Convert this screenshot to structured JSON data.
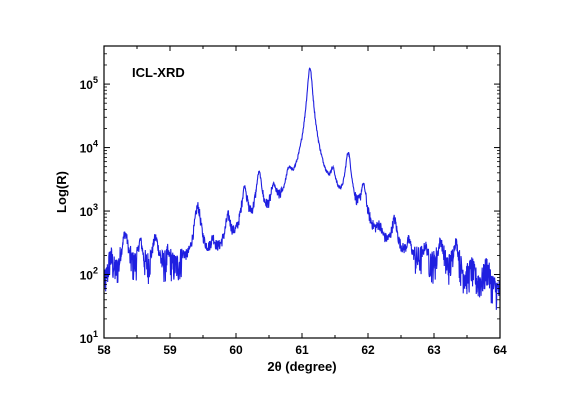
{
  "chart_data": {
    "type": "line",
    "annotation": "ICL-XRD",
    "xlabel": "2θ (degree)",
    "ylabel": "Log(R)",
    "xlim": [
      58,
      64
    ],
    "ylim": [
      10,
      1000000
    ],
    "yscale": "log",
    "x_ticks": [
      "58",
      "59",
      "60",
      "61",
      "62",
      "63",
      "64"
    ],
    "y_ticks": [
      {
        "base": "10",
        "exp": "1",
        "value": 10
      },
      {
        "base": "10",
        "exp": "2",
        "value": 100
      },
      {
        "base": "10",
        "exp": "3",
        "value": 1000
      },
      {
        "base": "10",
        "exp": "4",
        "value": 10000
      },
      {
        "base": "10",
        "exp": "5",
        "value": 100000
      }
    ],
    "grid": false,
    "series": [
      {
        "color": "#1f1fe0",
        "background": 8,
        "peaks": [
          {
            "x": 58.1,
            "y": 120,
            "w": 0.04
          },
          {
            "x": 58.32,
            "y": 380,
            "w": 0.05
          },
          {
            "x": 58.55,
            "y": 250,
            "w": 0.04
          },
          {
            "x": 58.78,
            "y": 290,
            "w": 0.05
          },
          {
            "x": 58.98,
            "y": 90,
            "w": 0.04
          },
          {
            "x": 59.2,
            "y": 60,
            "w": 0.04
          },
          {
            "x": 59.42,
            "y": 1050,
            "w": 0.045
          },
          {
            "x": 59.65,
            "y": 150,
            "w": 0.035
          },
          {
            "x": 59.88,
            "y": 550,
            "w": 0.04
          },
          {
            "x": 60.13,
            "y": 2000,
            "w": 0.04
          },
          {
            "x": 60.35,
            "y": 3500,
            "w": 0.04
          },
          {
            "x": 60.57,
            "y": 1550,
            "w": 0.04
          },
          {
            "x": 60.8,
            "y": 2400,
            "w": 0.045
          },
          {
            "x": 61.12,
            "y": 180000,
            "w": 0.035
          },
          {
            "x": 61.47,
            "y": 2500,
            "w": 0.04
          },
          {
            "x": 61.7,
            "y": 7500,
            "w": 0.04
          },
          {
            "x": 61.93,
            "y": 2000,
            "w": 0.04
          },
          {
            "x": 62.17,
            "y": 220,
            "w": 0.04
          },
          {
            "x": 62.4,
            "y": 500,
            "w": 0.04
          },
          {
            "x": 62.62,
            "y": 160,
            "w": 0.04
          },
          {
            "x": 62.87,
            "y": 150,
            "w": 0.04
          },
          {
            "x": 63.1,
            "y": 230,
            "w": 0.04
          },
          {
            "x": 63.33,
            "y": 240,
            "w": 0.04
          },
          {
            "x": 63.57,
            "y": 50,
            "w": 0.04
          },
          {
            "x": 63.8,
            "y": 70,
            "w": 0.045
          }
        ],
        "broad_scatter": {
          "x": 61.12,
          "y": 30000,
          "w": 0.35
        }
      }
    ]
  }
}
